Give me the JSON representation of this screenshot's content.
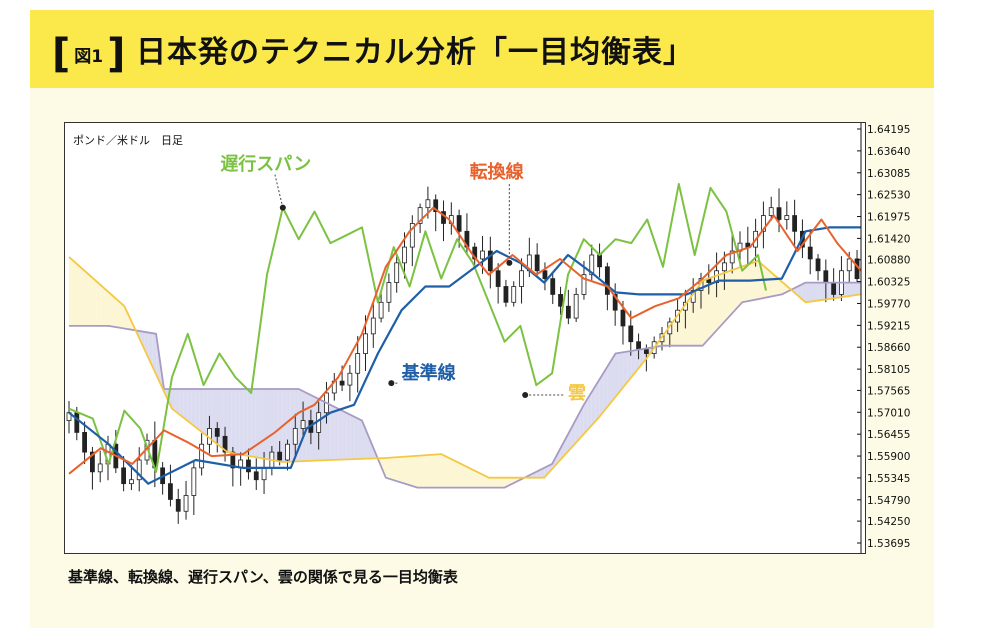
{
  "header": {
    "fig_label": "図1",
    "title": "日本発のテクニカル分析「一目均衡表」"
  },
  "caption": "基準線、転換線、遅行スパン、雲の関係で見る一目均衡表",
  "chart_data": {
    "type": "line",
    "title": "",
    "subtitle": "ポンド／米ドル　日足",
    "ylim": [
      1.53695,
      1.64195
    ],
    "y_ticks": [
      "1.64195",
      "1.63640",
      "1.63085",
      "1.62530",
      "1.61975",
      "1.61420",
      "1.60880",
      "1.60325",
      "1.59770",
      "1.59215",
      "1.58660",
      "1.58105",
      "1.57565",
      "1.57010",
      "1.56455",
      "1.55900",
      "1.55345",
      "1.54790",
      "1.54250",
      "1.53695"
    ],
    "annotations": [
      {
        "text": "遅行スパン",
        "color": "#7cc242",
        "series": "chikou"
      },
      {
        "text": "転換線",
        "color": "#e8622c",
        "series": "tenkan"
      },
      {
        "text": "基準線",
        "color": "#1f5fa8",
        "series": "kijun"
      },
      {
        "text": "雲",
        "color": "#f5c842",
        "series": "cloud"
      }
    ],
    "colors": {
      "tenkan": "#e8622c",
      "kijun": "#1f5fa8",
      "chikou": "#7cc242",
      "span_a": "#f5c842",
      "span_b": "#a79bc4",
      "cloud_bull": "#fdf6d4",
      "cloud_bear": "#dcdcf0",
      "candle": "#222222"
    },
    "series": [
      {
        "key": "span_a",
        "x": [
          0,
          7,
          13,
          20,
          27,
          33,
          40,
          47,
          53,
          60,
          67,
          73,
          80,
          87,
          93,
          100
        ],
        "values": [
          1.6095,
          1.597,
          1.571,
          1.56,
          1.5575,
          1.558,
          1.5585,
          1.5595,
          1.5535,
          1.5535,
          1.569,
          1.584,
          1.6035,
          1.6085,
          1.598,
          1.6
        ]
      },
      {
        "key": "span_b",
        "x": [
          0,
          5,
          11,
          12,
          19,
          29,
          33,
          37,
          40,
          44,
          48,
          55,
          61,
          65,
          69,
          75,
          80,
          85,
          90,
          93,
          96,
          100
        ],
        "values": [
          1.592,
          1.592,
          1.59,
          1.576,
          1.576,
          1.576,
          1.572,
          1.568,
          1.5535,
          1.551,
          1.551,
          1.551,
          1.557,
          1.572,
          1.585,
          1.587,
          1.587,
          1.598,
          1.6,
          1.603,
          1.603,
          1.603
        ]
      },
      {
        "key": "kijun",
        "x": [
          0,
          5,
          10,
          16,
          22,
          28,
          30,
          33,
          36,
          39,
          42,
          45,
          48,
          52,
          54,
          57,
          60,
          63,
          66,
          69,
          72,
          75,
          78,
          82,
          86,
          90,
          93,
          96,
          100
        ],
        "values": [
          1.57,
          1.562,
          1.552,
          1.558,
          1.556,
          1.556,
          1.566,
          1.57,
          1.572,
          1.585,
          1.596,
          1.602,
          1.602,
          1.608,
          1.611,
          1.608,
          1.603,
          1.61,
          1.6055,
          1.6005,
          1.6,
          1.6,
          1.6,
          1.6035,
          1.6035,
          1.604,
          1.616,
          1.617,
          1.617
        ]
      },
      {
        "key": "tenkan",
        "x": [
          0,
          4,
          8,
          12,
          15,
          18,
          22,
          26,
          29,
          31,
          34,
          37,
          40,
          43,
          46,
          48,
          51,
          53,
          56,
          59,
          62,
          65,
          68,
          71,
          74,
          77,
          80,
          83,
          86,
          89,
          92,
          95,
          97,
          100
        ],
        "values": [
          1.5545,
          1.561,
          1.557,
          1.5655,
          1.5625,
          1.559,
          1.5595,
          1.565,
          1.57,
          1.572,
          1.579,
          1.59,
          1.607,
          1.616,
          1.622,
          1.619,
          1.61,
          1.605,
          1.61,
          1.605,
          1.609,
          1.604,
          1.602,
          1.594,
          1.597,
          1.599,
          1.604,
          1.61,
          1.612,
          1.62,
          1.611,
          1.619,
          1.613,
          1.606
        ]
      },
      {
        "key": "chikou",
        "x": [
          0,
          3,
          5,
          7,
          9,
          11,
          13,
          15,
          17,
          19,
          21,
          23,
          25,
          27,
          29,
          31,
          33,
          35,
          37,
          39,
          41,
          43,
          45,
          47,
          49,
          51,
          53,
          55,
          57,
          59,
          61,
          63,
          65,
          67,
          69,
          71,
          73,
          75,
          77,
          79,
          81,
          83,
          85,
          87,
          88
        ],
        "values": [
          1.571,
          1.5685,
          1.557,
          1.5705,
          1.566,
          1.555,
          1.579,
          1.59,
          1.577,
          1.585,
          1.579,
          1.575,
          1.605,
          1.622,
          1.614,
          1.621,
          1.613,
          1.615,
          1.617,
          1.598,
          1.612,
          1.602,
          1.616,
          1.604,
          1.614,
          1.608,
          1.598,
          1.588,
          1.592,
          1.577,
          1.58,
          1.605,
          1.614,
          1.61,
          1.614,
          1.613,
          1.619,
          1.607,
          1.628,
          1.61,
          1.627,
          1.621,
          1.606,
          1.61,
          1.601
        ]
      }
    ],
    "candles_close_path": [
      1.57,
      1.565,
      1.56,
      1.555,
      1.557,
      1.562,
      1.556,
      1.552,
      1.553,
      1.558,
      1.563,
      1.556,
      1.552,
      1.548,
      1.545,
      1.549,
      1.556,
      1.562,
      1.566,
      1.564,
      1.56,
      1.556,
      1.558,
      1.555,
      1.553,
      1.556,
      1.56,
      1.558,
      1.562,
      1.566,
      1.568,
      1.565,
      1.57,
      1.575,
      1.578,
      1.577,
      1.58,
      1.585,
      1.59,
      1.594,
      1.598,
      1.603,
      1.608,
      1.612,
      1.618,
      1.622,
      1.624,
      1.621,
      1.618,
      1.62,
      1.616,
      1.612,
      1.609,
      1.611,
      1.606,
      1.602,
      1.598,
      1.602,
      1.606,
      1.61,
      1.606,
      1.604,
      1.6,
      1.597,
      1.594,
      1.6,
      1.605,
      1.61,
      1.607,
      1.6,
      1.596,
      1.592,
      1.588,
      1.586,
      1.585,
      1.588,
      1.59,
      1.593,
      1.596,
      1.598,
      1.601,
      1.604,
      1.603,
      1.606,
      1.608,
      1.611,
      1.613,
      1.612,
      1.616,
      1.62,
      1.622,
      1.619,
      1.62,
      1.616,
      1.612,
      1.609,
      1.606,
      1.603,
      1.6,
      1.606,
      1.609,
      1.604
    ]
  }
}
